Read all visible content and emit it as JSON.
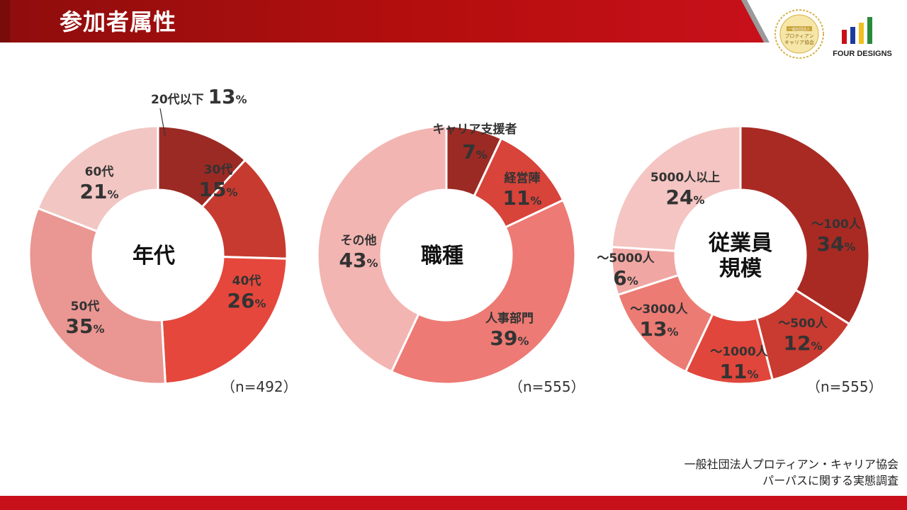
{
  "header": {
    "title": "参加者属性"
  },
  "logos": {
    "seal_text": [
      "一般社団法人",
      "プロティアン",
      "キャリア協会"
    ],
    "four_designs": "FOUR DESIGNS"
  },
  "source_note": [
    "一般社団法人プロティアン・キャリア協会",
    "パーパスに関する実態調査"
  ],
  "chart_data": [
    {
      "type": "pie",
      "title": "年代",
      "n_label": "（n=492）",
      "slices": [
        {
          "label": "20代以下",
          "value": 13,
          "color": "#9b2a24"
        },
        {
          "label": "30代",
          "value": 15,
          "color": "#c73a2f"
        },
        {
          "label": "40代",
          "value": 26,
          "color": "#e5473c"
        },
        {
          "label": "50代",
          "value": 35,
          "color": "#ea9692"
        },
        {
          "label": "60代",
          "value": 21,
          "color": "#f2c6c3"
        }
      ]
    },
    {
      "type": "pie",
      "title": "職種",
      "n_label": "（n=555）",
      "slices": [
        {
          "label": "キャリア支援者",
          "value": 7,
          "color": "#9b2a24"
        },
        {
          "label": "経営陣",
          "value": 11,
          "color": "#d8433a"
        },
        {
          "label": "人事部門",
          "value": 39,
          "color": "#ed7a74"
        },
        {
          "label": "その他",
          "value": 43,
          "color": "#f2b5b2"
        }
      ]
    },
    {
      "type": "pie",
      "title": "従業員規模",
      "title_lines": [
        "従業員",
        "規模"
      ],
      "n_label": "（n=555）",
      "slices": [
        {
          "label": "～100人",
          "value": 34,
          "color": "#a82a23"
        },
        {
          "label": "～500人",
          "value": 12,
          "color": "#c93a30"
        },
        {
          "label": "～1000人",
          "value": 11,
          "color": "#e0463b"
        },
        {
          "label": "～3000人",
          "value": 13,
          "color": "#ec7b74"
        },
        {
          "label": "～5000人",
          "value": 6,
          "color": "#f0a7a3"
        },
        {
          "label": "5000人以上",
          "value": 24,
          "color": "#f4c5c2"
        }
      ]
    }
  ]
}
